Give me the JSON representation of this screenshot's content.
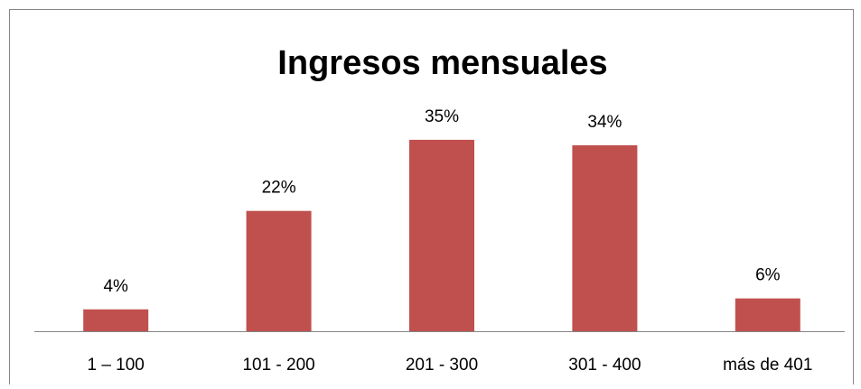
{
  "chart_data": {
    "type": "bar",
    "title": "Ingresos mensuales",
    "categories": [
      "1 – 100",
      "101 - 200",
      "201 - 300",
      "301 - 400",
      "más de 401"
    ],
    "values": [
      4,
      22,
      35,
      34,
      6
    ],
    "value_labels": [
      "4%",
      "22%",
      "35%",
      "34%",
      "6%"
    ],
    "color": "#c0504d"
  }
}
